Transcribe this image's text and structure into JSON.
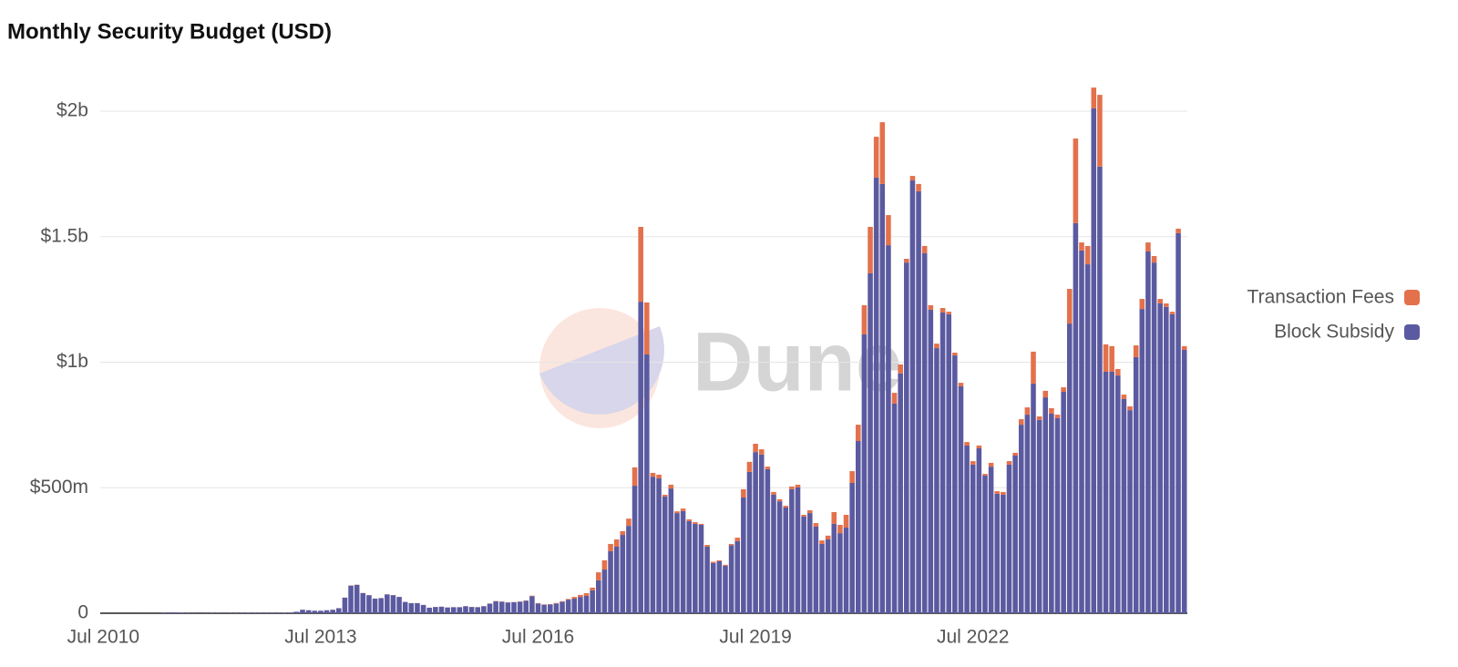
{
  "chart_data": {
    "type": "stacked-bar",
    "title": "Monthly Security Budget (USD)",
    "watermark": "Dune",
    "categories": [
      "Jul 2010",
      null,
      null,
      null,
      null,
      null,
      null,
      null,
      null,
      null,
      null,
      null,
      null,
      null,
      null,
      null,
      null,
      null,
      null,
      null,
      null,
      null,
      null,
      null,
      null,
      null,
      null,
      null,
      null,
      null,
      null,
      null,
      null,
      null,
      null,
      null,
      "Jul 2013",
      null,
      null,
      null,
      null,
      null,
      null,
      null,
      null,
      null,
      null,
      null,
      null,
      null,
      null,
      null,
      null,
      null,
      null,
      null,
      null,
      null,
      null,
      null,
      null,
      null,
      null,
      null,
      null,
      null,
      null,
      null,
      null,
      null,
      null,
      null,
      "Jul 2016",
      null,
      null,
      null,
      null,
      null,
      null,
      null,
      null,
      null,
      null,
      null,
      null,
      null,
      null,
      null,
      null,
      null,
      null,
      null,
      null,
      null,
      null,
      null,
      null,
      null,
      null,
      null,
      null,
      null,
      null,
      null,
      null,
      null,
      null,
      null,
      "Jul 2019",
      null,
      null,
      null,
      null,
      null,
      null,
      null,
      null,
      null,
      null,
      null,
      null,
      null,
      null,
      null,
      null,
      null,
      null,
      null,
      null,
      null,
      null,
      null,
      null,
      null,
      null,
      null,
      null,
      null,
      null,
      null,
      null,
      null,
      null,
      null,
      "Jul 2022",
      null,
      null,
      null,
      null,
      null,
      null,
      null,
      null,
      null,
      null,
      null,
      null,
      null,
      null,
      null,
      null,
      null,
      null,
      null,
      null,
      null,
      null,
      null,
      null,
      null,
      null,
      null,
      null,
      null,
      null,
      null,
      null,
      null,
      null,
      null
    ],
    "series": [
      {
        "name": "Transaction Fees",
        "color": "#e3714c",
        "values": [
          1000.0,
          1000.0,
          1000.0,
          1000.0,
          1000.0,
          1000.0,
          1000.0,
          1000.0,
          1000.0,
          1000.0,
          10000.0,
          10000.0,
          10000.0,
          10000.0,
          10000.0,
          10000.0,
          10000.0,
          10000.0,
          20000.0,
          20000.0,
          20000.0,
          20000.0,
          20000.0,
          20000.0,
          20000.0,
          20000.0,
          20000.0,
          20000.0,
          20000.0,
          20000.0,
          50000.0,
          60000.0,
          100000.0,
          200000.0,
          150000.0,
          120000.0,
          100000.0,
          100000.0,
          100000.0,
          200000.0,
          500000.0,
          1000000.0,
          1000000.0,
          800000.0,
          600000.0,
          500000.0,
          500000.0,
          600000.0,
          600000.0,
          500000.0,
          400000.0,
          400000.0,
          400000.0,
          300000.0,
          200000.0,
          300000.0,
          300000.0,
          300000.0,
          300000.0,
          300000.0,
          500000.0,
          400000.0,
          400000.0,
          500000.0,
          700000.0,
          800000.0,
          800000.0,
          800000.0,
          900000.0,
          1000000.0,
          1200000.0,
          2000000.0,
          1500000.0,
          1300000.0,
          1400000.0,
          1800000.0,
          2000000.0,
          3000000.0,
          7000000.0,
          8000000.0,
          11000000.0,
          11000000.0,
          32000000.0,
          37000000.0,
          29000000.0,
          29000000.0,
          15000000.0,
          29000000.0,
          73000000.0,
          298000000.0,
          207000000.0,
          15000000.0,
          15000000.0,
          7000000.0,
          15000000.0,
          7000000.0,
          10000000.0,
          7000000.0,
          7000000.0,
          4000000.0,
          7000000.0,
          5000000.0,
          4000000.0,
          4000000.0,
          5000000.0,
          14000000.0,
          33000000.0,
          40000000.0,
          33000000.0,
          21000000.0,
          10000000.0,
          11000000.0,
          8000000.0,
          7000000.0,
          11000000.0,
          11000000.0,
          7000000.0,
          11000000.0,
          14000000.0,
          14000000.0,
          15000000.0,
          47000000.0,
          33000000.0,
          51000000.0,
          47000000.0,
          65000000.0,
          116000000.0,
          185000000.0,
          163000000.0,
          246000000.0,
          120000000.0,
          43000000.0,
          36000000.0,
          15000000.0,
          18000000.0,
          29000000.0,
          29000000.0,
          18000000.0,
          18000000.0,
          18000000.0,
          10000000.0,
          11000000.0,
          14000000.0,
          14000000.0,
          14000000.0,
          11000000.0,
          7000000.0,
          15000000.0,
          10000000.0,
          11000000.0,
          14000000.0,
          11000000.0,
          22000000.0,
          29000000.0,
          127000000.0,
          14000000.0,
          26000000.0,
          22000000.0,
          14000000.0,
          18000000.0,
          138000000.0,
          337000000.0,
          32000000.0,
          73000000.0,
          83000000.0,
          286000000.0,
          109000000.0,
          102000000.0,
          26000000.0,
          18000000.0,
          15000000.0,
          47000000.0,
          40000000.0,
          36000000.0,
          26000000.0,
          18000000.0,
          14000000.0,
          10000000.0,
          18000000.0,
          15000000.0
        ]
      },
      {
        "name": "Block Subsidy",
        "color": "#5b5aa0",
        "values": [
          15000.0,
          15000.0,
          15000.0,
          30000.0,
          50000.0,
          50000.0,
          70000.0,
          150000.0,
          180000.0,
          250000.0,
          1200000.0,
          3500000.0,
          3000000.0,
          2300000.0,
          1200000.0,
          800000.0,
          600000.0,
          800000.0,
          1300000.0,
          1100000.0,
          1000000.0,
          1100000.0,
          1100000.0,
          1400000.0,
          1800000.0,
          2300000.0,
          2400000.0,
          2400000.0,
          2400000.0,
          1400000.0,
          1800000.0,
          2700000.0,
          6000000.0,
          14000000.0,
          12000000.0,
          10000000.0,
          10000000.0,
          12000000.0,
          14000000.0,
          20000000.0,
          62000000.0,
          110000000.0,
          113000000.0,
          80000000.0,
          72000000.0,
          58000000.0,
          60000000.0,
          75000000.0,
          72000000.0,
          65000000.0,
          45000000.0,
          40000000.0,
          40000000.0,
          33000000.0,
          22000000.0,
          25000000.0,
          26000000.0,
          23000000.0,
          24000000.0,
          24000000.0,
          28000000.0,
          25000000.0,
          24000000.0,
          28000000.0,
          38000000.0,
          48000000.0,
          46000000.0,
          43000000.0,
          44000000.0,
          46000000.0,
          50000000.0,
          68000000.0,
          39000000.0,
          34000000.0,
          35000000.0,
          39000000.0,
          46000000.0,
          54000000.0,
          58000000.0,
          65000000.0,
          69000000.0,
          91000000.0,
          131000000.0,
          174000000.0,
          247000000.0,
          265000000.0,
          312000000.0,
          348000000.0,
          508000000.0,
          1241000000.0,
          1031000000.0,
          544000000.0,
          537000000.0,
          465000000.0,
          497000000.0,
          399000000.0,
          407000000.0,
          367000000.0,
          356000000.0,
          352000000.0,
          265000000.0,
          200000000.0,
          207000000.0,
          189000000.0,
          271000000.0,
          287000000.0,
          461000000.0,
          563000000.0,
          642000000.0,
          632000000.0,
          574000000.0,
          472000000.0,
          446000000.0,
          421000000.0,
          494000000.0,
          501000000.0,
          385000000.0,
          399000000.0,
          345000000.0,
          276000000.0,
          294000000.0,
          356000000.0,
          319000000.0,
          341000000.0,
          519000000.0,
          686000000.0,
          1111000000.0,
          1354000000.0,
          1735000000.0,
          1710000000.0,
          1466000000.0,
          835000000.0,
          955000000.0,
          1397000000.0,
          1724000000.0,
          1681000000.0,
          1434000000.0,
          1209000000.0,
          1056000000.0,
          1198000000.0,
          1191000000.0,
          1027000000.0,
          904000000.0,
          668000000.0,
          592000000.0,
          657000000.0,
          548000000.0,
          584000000.0,
          476000000.0,
          472000000.0,
          592000000.0,
          628000000.0,
          751000000.0,
          791000000.0,
          915000000.0,
          770000000.0,
          860000000.0,
          795000000.0,
          777000000.0,
          882000000.0,
          1154000000.0,
          1554000000.0,
          1445000000.0,
          1390000000.0,
          2011000000.0,
          1779000000.0,
          962000000.0,
          962000000.0,
          947000000.0,
          853000000.0,
          809000000.0,
          1020000000.0,
          1212000000.0,
          1441000000.0,
          1397000000.0,
          1234000000.0,
          1220000000.0,
          1191000000.0,
          1514000000.0,
          1049000000.0
        ]
      }
    ],
    "ylim": [
      0,
      2100000000.0
    ],
    "yticks": [
      0,
      {
        "value": 500000000.0,
        "label": "$500m"
      },
      {
        "value": 1000000000.0,
        "label": "$1b"
      },
      {
        "value": 1500000000.0,
        "label": "$1.5b"
      },
      {
        "value": 2000000000.0,
        "label": "$2b"
      }
    ],
    "grid": true,
    "legend": "right"
  }
}
